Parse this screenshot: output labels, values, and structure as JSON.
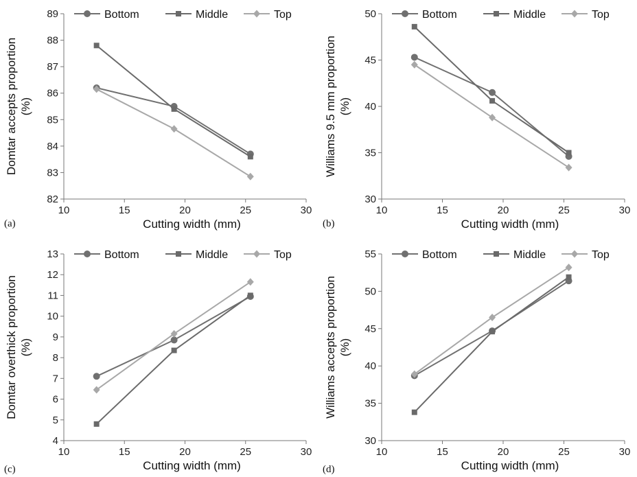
{
  "chart_data": [
    {
      "type": "line",
      "panel_label": "(a)",
      "xlabel": "Cutting width (mm)",
      "ylabel_lines": [
        "Domtar accepts proportion",
        "(%)"
      ],
      "xlim": [
        10,
        30
      ],
      "xticks": [
        10,
        15,
        20,
        25,
        30
      ],
      "ylim": [
        82,
        89
      ],
      "yticks": [
        82,
        83,
        84,
        85,
        86,
        87,
        88,
        89
      ],
      "x": [
        12.7,
        19.1,
        25.4
      ],
      "series": [
        {
          "name": "Bottom",
          "values": [
            86.2,
            85.5,
            83.7
          ],
          "marker": "circle",
          "color": "#707070"
        },
        {
          "name": "Middle",
          "values": [
            87.8,
            85.4,
            83.6
          ],
          "marker": "square",
          "color": "#6a6a6a"
        },
        {
          "name": "Top",
          "values": [
            86.15,
            84.65,
            82.85
          ],
          "marker": "diamond",
          "color": "#a8a8a8"
        }
      ]
    },
    {
      "type": "line",
      "panel_label": "(b)",
      "xlabel": "Cutting width (mm)",
      "ylabel_lines": [
        "Williams 9.5 mm proportion",
        "(%)"
      ],
      "xlim": [
        10,
        30
      ],
      "xticks": [
        10,
        15,
        20,
        25,
        30
      ],
      "ylim": [
        30,
        50
      ],
      "yticks": [
        30,
        35,
        40,
        45,
        50
      ],
      "x": [
        12.7,
        19.1,
        25.4
      ],
      "series": [
        {
          "name": "Bottom",
          "values": [
            45.3,
            41.5,
            34.6
          ],
          "marker": "circle",
          "color": "#707070"
        },
        {
          "name": "Middle",
          "values": [
            48.6,
            40.6,
            35.0
          ],
          "marker": "square",
          "color": "#6a6a6a"
        },
        {
          "name": "Top",
          "values": [
            44.5,
            38.8,
            33.4
          ],
          "marker": "diamond",
          "color": "#a8a8a8"
        }
      ]
    },
    {
      "type": "line",
      "panel_label": "(c)",
      "xlabel": "Cutting width (mm)",
      "ylabel_lines": [
        "Domtar overthick proportion",
        "(%)"
      ],
      "xlim": [
        10,
        30
      ],
      "xticks": [
        10,
        15,
        20,
        25,
        30
      ],
      "ylim": [
        4,
        13
      ],
      "yticks": [
        4,
        5,
        6,
        7,
        8,
        9,
        10,
        11,
        12,
        13
      ],
      "x": [
        12.7,
        19.1,
        25.4
      ],
      "series": [
        {
          "name": "Bottom",
          "values": [
            7.1,
            8.85,
            10.95
          ],
          "marker": "circle",
          "color": "#707070"
        },
        {
          "name": "Middle",
          "values": [
            4.8,
            8.35,
            11.0
          ],
          "marker": "square",
          "color": "#6a6a6a"
        },
        {
          "name": "Top",
          "values": [
            6.45,
            9.15,
            11.65
          ],
          "marker": "diamond",
          "color": "#a8a8a8"
        }
      ]
    },
    {
      "type": "line",
      "panel_label": "(d)",
      "xlabel": "Cutting width (mm)",
      "ylabel_lines": [
        "Williams accepts proportion",
        "(%)"
      ],
      "xlim": [
        10,
        30
      ],
      "xticks": [
        10,
        15,
        20,
        25,
        30
      ],
      "ylim": [
        30,
        55
      ],
      "yticks": [
        30,
        35,
        40,
        45,
        50,
        55
      ],
      "x": [
        12.7,
        19.1,
        25.4
      ],
      "series": [
        {
          "name": "Bottom",
          "values": [
            38.7,
            44.7,
            51.4
          ],
          "marker": "circle",
          "color": "#707070"
        },
        {
          "name": "Middle",
          "values": [
            33.8,
            44.6,
            51.9
          ],
          "marker": "square",
          "color": "#6a6a6a"
        },
        {
          "name": "Top",
          "values": [
            38.9,
            46.5,
            53.2
          ],
          "marker": "diamond",
          "color": "#a8a8a8"
        }
      ]
    }
  ]
}
